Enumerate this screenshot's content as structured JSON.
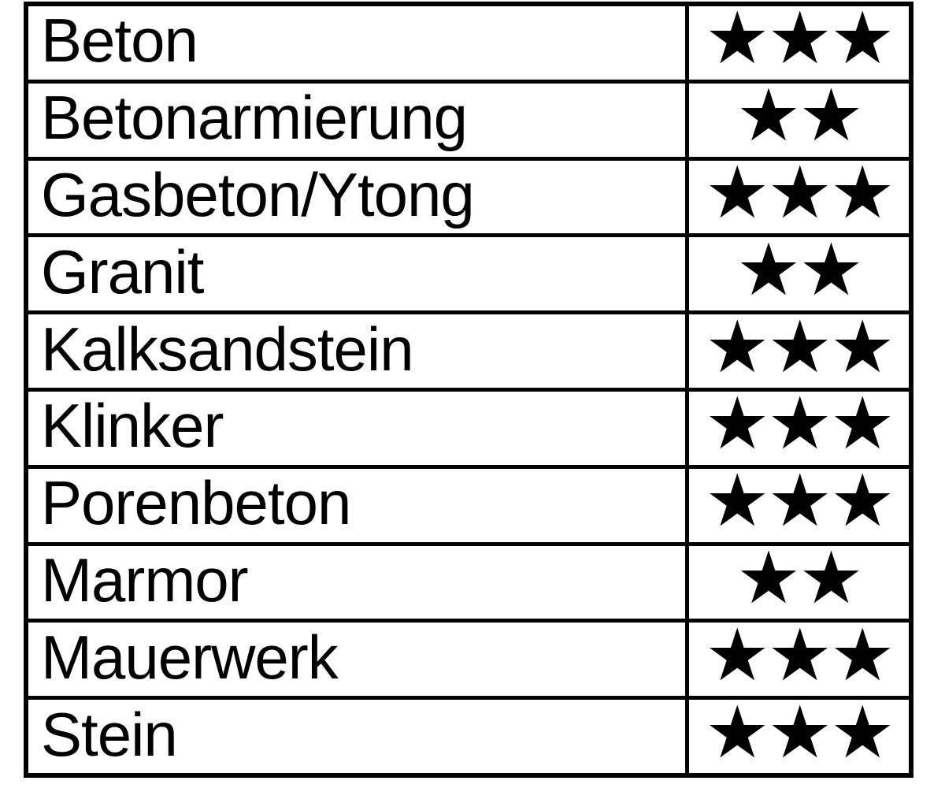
{
  "colors": {
    "background": "#ffffff",
    "border": "#000000",
    "text": "#000000",
    "star": "#000000"
  },
  "table": {
    "star_char": "★",
    "max_stars": 3,
    "rows": [
      {
        "material": "Beton",
        "stars": 3
      },
      {
        "material": "Betonarmierung",
        "stars": 2
      },
      {
        "material": "Gasbeton/Ytong",
        "stars": 3
      },
      {
        "material": "Granit",
        "stars": 2
      },
      {
        "material": "Kalksandstein",
        "stars": 3
      },
      {
        "material": "Klinker",
        "stars": 3
      },
      {
        "material": "Porenbeton",
        "stars": 3
      },
      {
        "material": "Marmor",
        "stars": 2
      },
      {
        "material": "Mauerwerk",
        "stars": 3
      },
      {
        "material": "Stein",
        "stars": 3
      }
    ]
  }
}
